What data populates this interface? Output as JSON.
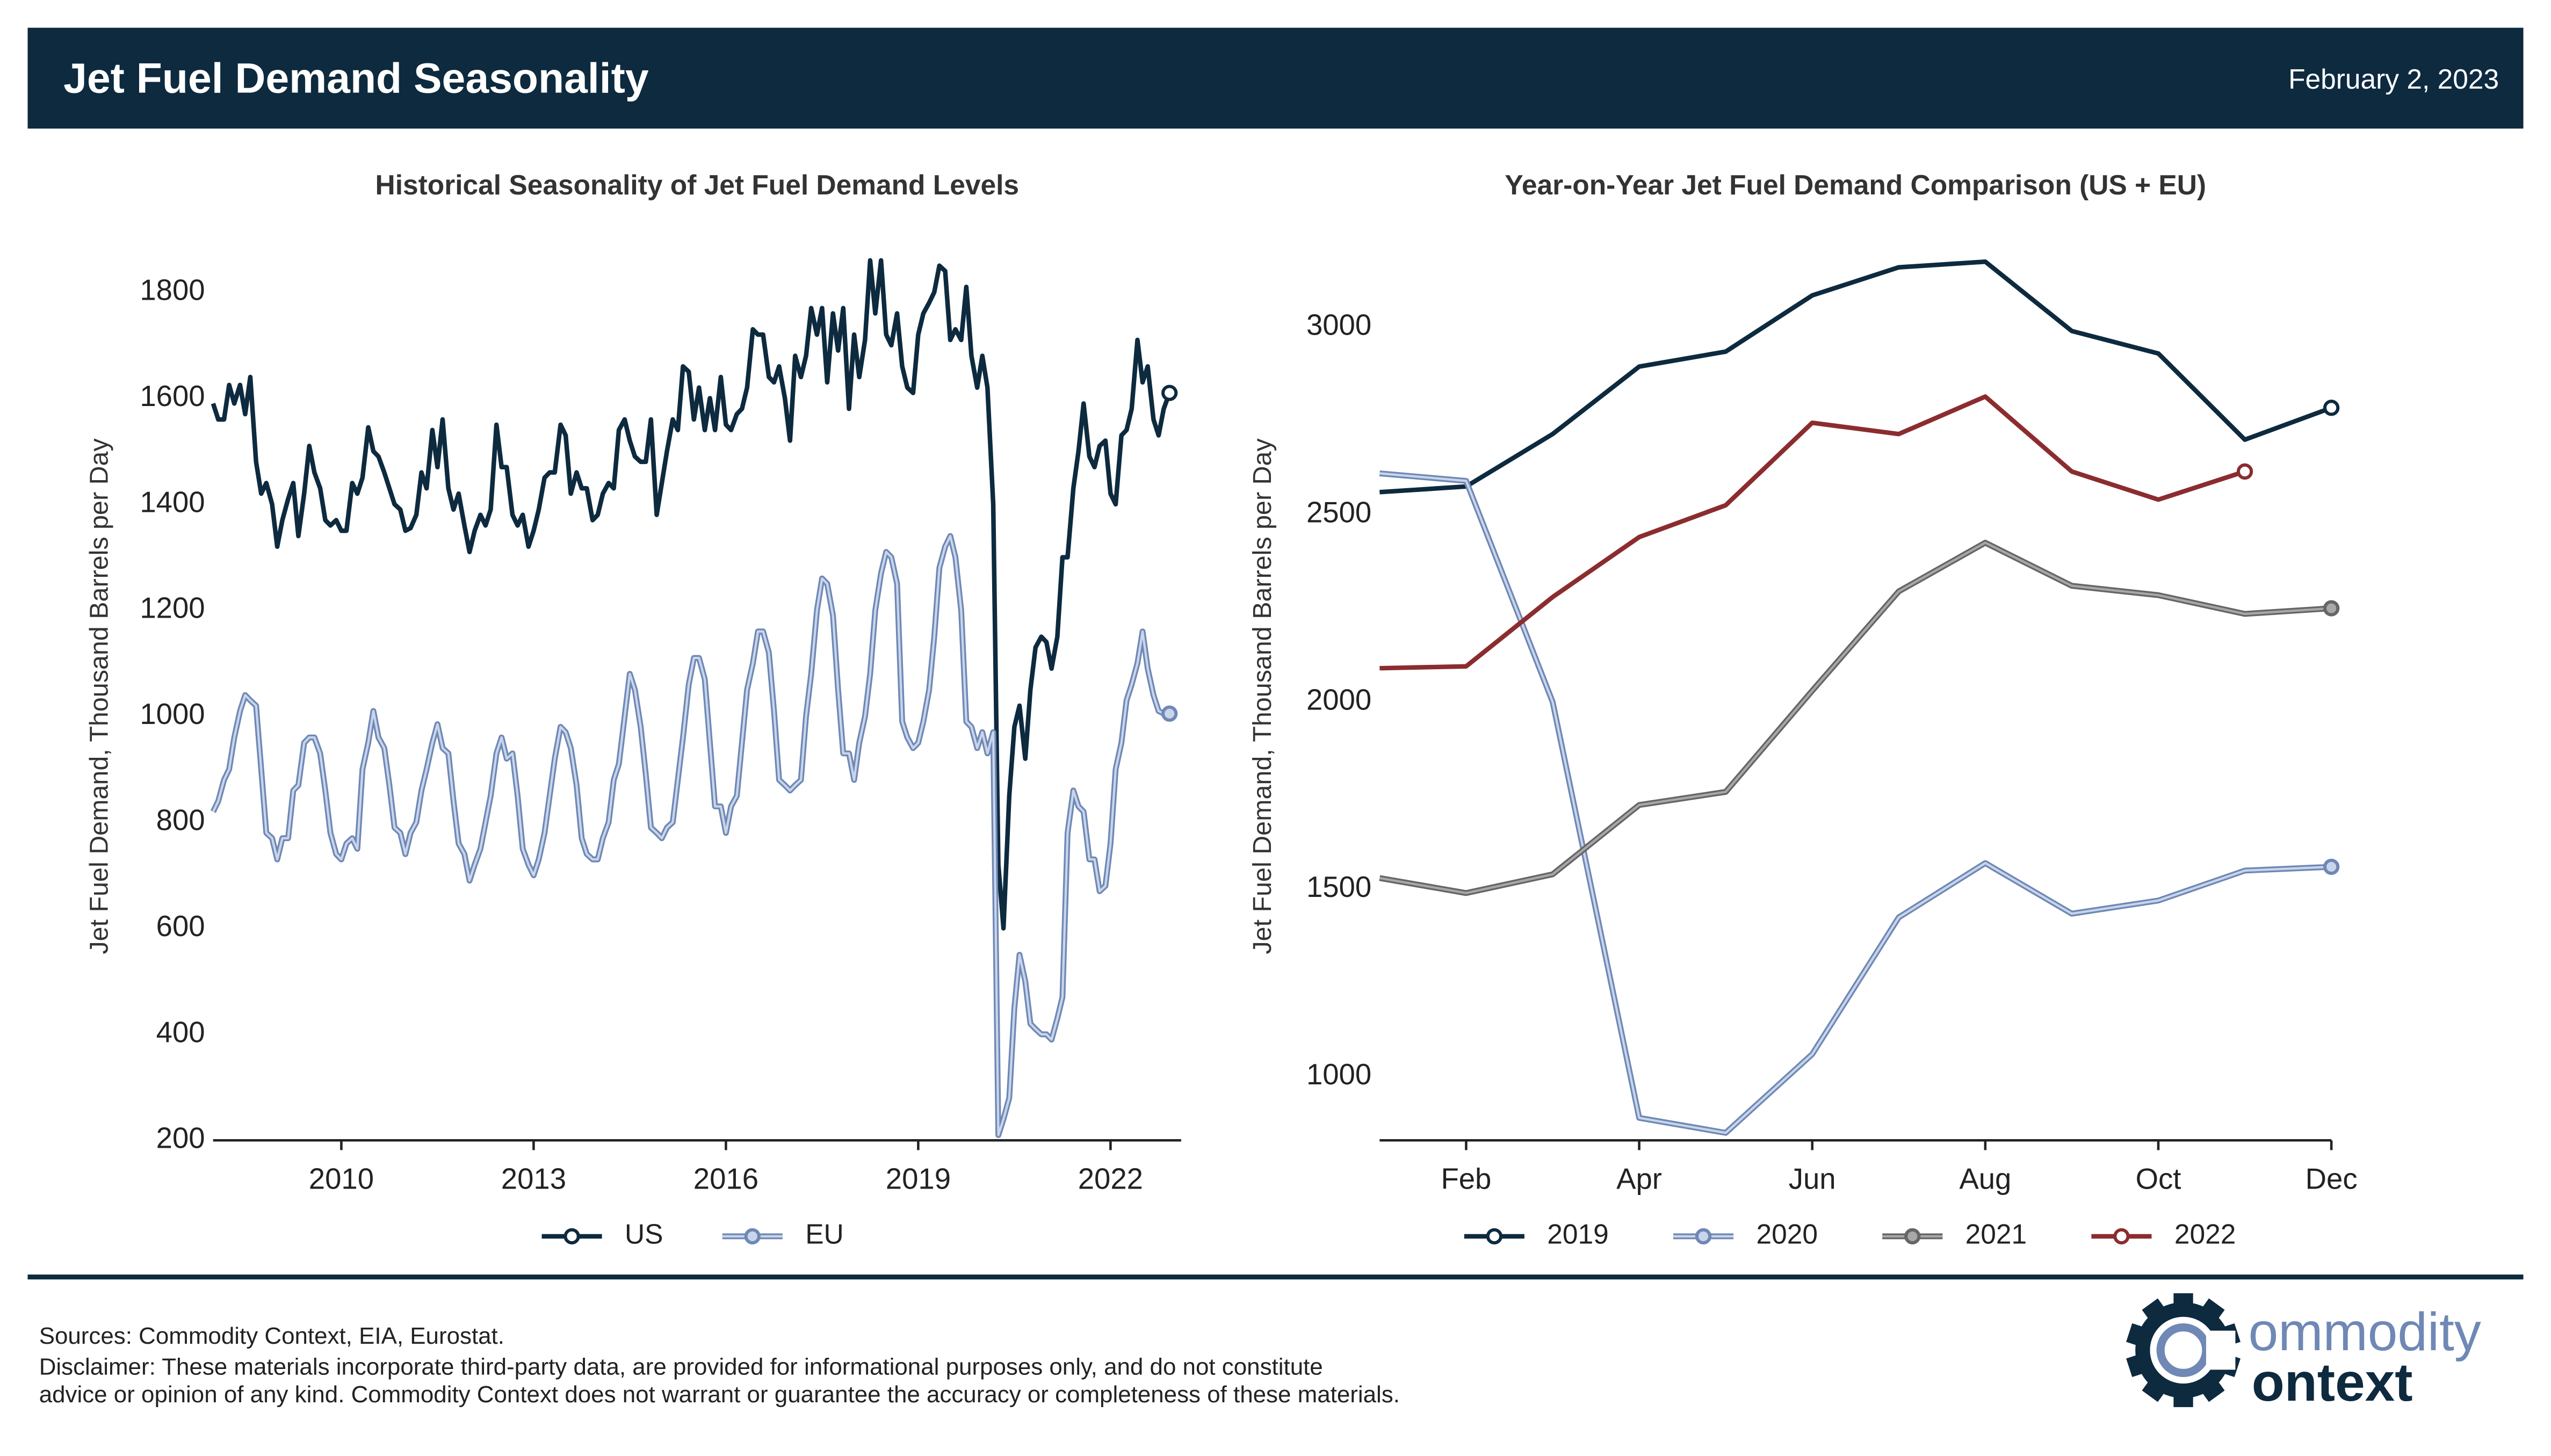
{
  "header": {
    "title": "Jet Fuel Demand Seasonality",
    "date": "February 2, 2023"
  },
  "chart_data": [
    {
      "type": "line",
      "title": "Historical Seasonality of Jet Fuel Demand Levels",
      "y_label": "Jet Fuel Demand, Thousand Barrels per Day",
      "x": [
        2008,
        2008.08,
        2008.17,
        2008.25,
        2008.33,
        2008.42,
        2008.5,
        2008.58,
        2008.67,
        2008.75,
        2008.83,
        2008.92,
        2009,
        2009.08,
        2009.17,
        2009.25,
        2009.33,
        2009.42,
        2009.5,
        2009.58,
        2009.67,
        2009.75,
        2009.83,
        2009.92,
        2010,
        2010.08,
        2010.17,
        2010.25,
        2010.33,
        2010.42,
        2010.5,
        2010.58,
        2010.67,
        2010.75,
        2010.83,
        2010.92,
        2011,
        2011.08,
        2011.17,
        2011.25,
        2011.33,
        2011.42,
        2011.5,
        2011.58,
        2011.67,
        2011.75,
        2011.83,
        2011.92,
        2012,
        2012.08,
        2012.17,
        2012.25,
        2012.33,
        2012.42,
        2012.5,
        2012.58,
        2012.67,
        2012.75,
        2012.83,
        2012.92,
        2013,
        2013.08,
        2013.17,
        2013.25,
        2013.33,
        2013.42,
        2013.5,
        2013.58,
        2013.67,
        2013.75,
        2013.83,
        2013.92,
        2014,
        2014.08,
        2014.17,
        2014.25,
        2014.33,
        2014.42,
        2014.5,
        2014.58,
        2014.67,
        2014.75,
        2014.83,
        2014.92,
        2015,
        2015.08,
        2015.17,
        2015.25,
        2015.33,
        2015.42,
        2015.5,
        2015.58,
        2015.67,
        2015.75,
        2015.83,
        2015.92,
        2016,
        2016.08,
        2016.17,
        2016.25,
        2016.33,
        2016.42,
        2016.5,
        2016.58,
        2016.67,
        2016.75,
        2016.83,
        2016.92,
        2017,
        2017.08,
        2017.17,
        2017.25,
        2017.33,
        2017.42,
        2017.5,
        2017.58,
        2017.67,
        2017.75,
        2017.83,
        2017.92,
        2018,
        2018.08,
        2018.17,
        2018.25,
        2018.33,
        2018.42,
        2018.5,
        2018.58,
        2018.67,
        2018.75,
        2018.83,
        2018.92,
        2019,
        2019.08,
        2019.17,
        2019.25,
        2019.33,
        2019.42,
        2019.5,
        2019.58,
        2019.67,
        2019.75,
        2019.83,
        2019.92,
        2020,
        2020.08,
        2020.17,
        2020.25,
        2020.33,
        2020.42,
        2020.5,
        2020.58,
        2020.67,
        2020.75,
        2020.83,
        2020.92,
        2021,
        2021.08,
        2021.17,
        2021.25,
        2021.33,
        2021.42,
        2021.5,
        2021.58,
        2021.67,
        2021.75,
        2021.83,
        2021.92,
        2022,
        2022.08,
        2022.17,
        2022.25,
        2022.33,
        2022.42,
        2022.5,
        2022.58,
        2022.67,
        2022.75,
        2022.83,
        2022.92
      ],
      "series": [
        {
          "name": "US",
          "color": "#0d2a3f",
          "values": [
            1590,
            1560,
            1560,
            1625,
            1590,
            1625,
            1570,
            1640,
            1480,
            1420,
            1440,
            1400,
            1320,
            1370,
            1410,
            1440,
            1340,
            1420,
            1510,
            1460,
            1430,
            1370,
            1360,
            1370,
            1350,
            1350,
            1440,
            1420,
            1450,
            1545,
            1500,
            1490,
            1460,
            1430,
            1400,
            1390,
            1350,
            1355,
            1380,
            1460,
            1430,
            1540,
            1470,
            1560,
            1430,
            1390,
            1420,
            1360,
            1310,
            1350,
            1380,
            1360,
            1390,
            1550,
            1470,
            1470,
            1380,
            1360,
            1380,
            1320,
            1350,
            1390,
            1450,
            1460,
            1460,
            1550,
            1530,
            1420,
            1460,
            1430,
            1430,
            1370,
            1380,
            1420,
            1440,
            1430,
            1540,
            1560,
            1520,
            1490,
            1480,
            1480,
            1560,
            1380,
            1440,
            1500,
            1560,
            1540,
            1660,
            1650,
            1560,
            1620,
            1540,
            1600,
            1540,
            1640,
            1550,
            1540,
            1570,
            1580,
            1620,
            1730,
            1720,
            1720,
            1640,
            1630,
            1660,
            1600,
            1520,
            1680,
            1640,
            1680,
            1770,
            1720,
            1770,
            1630,
            1760,
            1690,
            1770,
            1580,
            1720,
            1640,
            1710,
            1860,
            1760,
            1860,
            1720,
            1700,
            1760,
            1660,
            1620,
            1610,
            1720,
            1760,
            1780,
            1800,
            1850,
            1840,
            1710,
            1730,
            1710,
            1810,
            1680,
            1620,
            1680,
            1620,
            1400,
            720,
            600,
            850,
            980,
            1020,
            920,
            1050,
            1130,
            1150,
            1140,
            1090,
            1150,
            1300,
            1300,
            1430,
            1500,
            1590,
            1490,
            1470,
            1510,
            1520,
            1420,
            1400,
            1530,
            1540,
            1580,
            1710,
            1630,
            1660,
            1560,
            1530,
            1580,
            1610
          ]
        },
        {
          "name": "EU",
          "color": "#c9d5ea",
          "edge_color": "#6f88b5",
          "values": [
            820,
            840,
            880,
            900,
            960,
            1010,
            1040,
            1030,
            1020,
            900,
            780,
            770,
            730,
            770,
            770,
            860,
            870,
            950,
            960,
            960,
            930,
            860,
            780,
            740,
            730,
            760,
            770,
            750,
            900,
            950,
            1010,
            960,
            940,
            870,
            790,
            780,
            740,
            780,
            800,
            860,
            900,
            950,
            985,
            940,
            930,
            840,
            760,
            740,
            690,
            720,
            750,
            800,
            850,
            930,
            960,
            920,
            930,
            850,
            750,
            720,
            700,
            730,
            780,
            850,
            920,
            980,
            970,
            940,
            870,
            770,
            740,
            730,
            730,
            770,
            800,
            880,
            910,
            1000,
            1080,
            1050,
            980,
            890,
            790,
            780,
            770,
            790,
            800,
            880,
            960,
            1060,
            1110,
            1110,
            1070,
            950,
            830,
            830,
            780,
            830,
            850,
            950,
            1050,
            1100,
            1160,
            1160,
            1120,
            1010,
            880,
            870,
            860,
            870,
            880,
            1000,
            1080,
            1200,
            1260,
            1250,
            1190,
            1050,
            930,
            930,
            880,
            950,
            1000,
            1080,
            1200,
            1270,
            1310,
            1300,
            1250,
            990,
            960,
            940,
            950,
            990,
            1050,
            1150,
            1280,
            1320,
            1340,
            1300,
            1200,
            990,
            980,
            940,
            970,
            930,
            970,
            210,
            240,
            280,
            450,
            550,
            500,
            420,
            410,
            400,
            400,
            390,
            430,
            470,
            780,
            860,
            830,
            820,
            730,
            730,
            670,
            680,
            760,
            900,
            950,
            1030,
            1060,
            1100,
            1160,
            1090,
            1040,
            1010,
            1005,
            1005
          ]
        }
      ],
      "xlim": [
        2008,
        2023
      ],
      "xticks": [
        2010,
        2013,
        2016,
        2019,
        2022
      ],
      "ylim": [
        200,
        1900
      ],
      "yticks": [
        200,
        400,
        600,
        800,
        1000,
        1200,
        1400,
        1600,
        1800
      ],
      "grid": false
    },
    {
      "type": "line",
      "title": "Year-on-Year Jet Fuel Demand Comparison (US + EU)",
      "y_label": "Jet Fuel Demand, Thousand Barrels per Day",
      "categories": [
        null,
        "Feb",
        null,
        "Apr",
        null,
        "Jun",
        null,
        "Aug",
        null,
        "Oct",
        null,
        "Dec"
      ],
      "series": [
        {
          "name": "2019",
          "color": "#0d2a3f",
          "values": [
            2560,
            2575,
            2715,
            2895,
            2935,
            3085,
            3160,
            3175,
            2990,
            2930,
            2700,
            2785
          ]
        },
        {
          "name": "2020",
          "color": "#c9d5ea",
          "edge_color": "#6f88b5",
          "values": [
            2610,
            2590,
            2000,
            890,
            850,
            1060,
            1425,
            1570,
            1435,
            1470,
            1550,
            1560
          ]
        },
        {
          "name": "2021",
          "color": "#a8a8a8",
          "edge_color": "#666666",
          "values": [
            1530,
            1490,
            1540,
            1725,
            1760,
            2030,
            2295,
            2425,
            2310,
            2285,
            2235,
            2250
          ]
        },
        {
          "name": "2022",
          "color": "#8b2c2f",
          "values": [
            2090,
            2095,
            2280,
            2440,
            2525,
            2745,
            2715,
            2815,
            2615,
            2540,
            2615,
            null
          ]
        }
      ],
      "ylim": [
        830,
        3235
      ],
      "yticks": [
        1000,
        1500,
        2000,
        2500,
        3000
      ],
      "grid": false
    }
  ],
  "footer": {
    "sources": "Sources: Commodity Context, EIA, Eurostat.",
    "disclaimer": [
      "Disclaimer: These materials incorporate third-party data, are provided for informational purposes only, and do not constitute",
      "advice or opinion of any kind. Commodity Context does not warrant or guarantee the accuracy or completeness of these materials."
    ]
  },
  "logo": {
    "line1": "ommodity",
    "line2": "ontext"
  }
}
